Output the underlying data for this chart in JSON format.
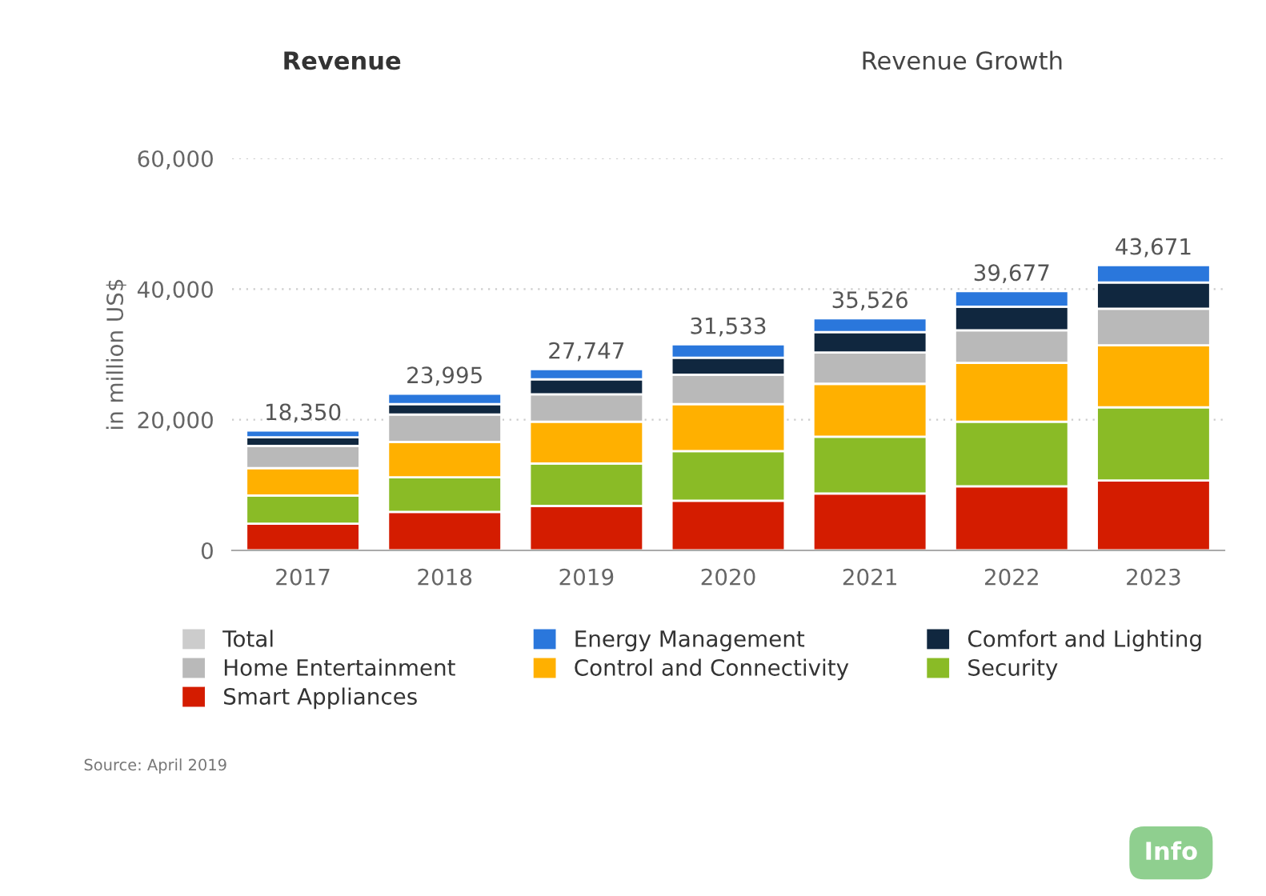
{
  "chart_data": {
    "type": "bar",
    "stacked": true,
    "categories": [
      "2017",
      "2018",
      "2019",
      "2020",
      "2021",
      "2022",
      "2023"
    ],
    "ylabel": "in million US$",
    "ylim": [
      0,
      60000
    ],
    "yticks": [
      0,
      {
        "value": 20000,
        "label": "20,000"
      },
      {
        "value": 40000,
        "label": "40,000"
      },
      {
        "value": 60000,
        "label": "60,000"
      }
    ],
    "grid": "y",
    "legend": "bottom",
    "series": [
      {
        "name": "Smart Appliances",
        "color": "#d41c00",
        "values": [
          4100,
          5900,
          6800,
          7600,
          8700,
          9800,
          10700
        ]
      },
      {
        "name": "Security",
        "color": "#8abb26",
        "values": [
          4300,
          5300,
          6500,
          7600,
          8700,
          9900,
          11200
        ]
      },
      {
        "name": "Control and Connectivity",
        "color": "#ffb000",
        "values": [
          4200,
          5400,
          6400,
          7200,
          8100,
          9000,
          9500
        ]
      },
      {
        "name": "Home Entertainment",
        "color": "#b9b9b9",
        "values": [
          3400,
          4200,
          4200,
          4500,
          4800,
          5000,
          5600
        ]
      },
      {
        "name": "Comfort and Lighting",
        "color": "#10273f",
        "values": [
          1300,
          1600,
          2300,
          2600,
          3100,
          3600,
          4000
        ]
      },
      {
        "name": "Energy Management",
        "color": "#2a77dc",
        "values": [
          1050,
          1595,
          1547,
          2033,
          2126,
          2377,
          2671
        ]
      },
      {
        "name": "Total",
        "color": "#cccccc",
        "values": [
          null,
          null,
          null,
          null,
          null,
          null,
          null
        ]
      }
    ],
    "totals": [
      "18,350",
      "23,995",
      "27,747",
      "31,533",
      "35,526",
      "39,677",
      "43,671"
    ],
    "annotations": [
      "Revenue",
      "Revenue Growth",
      "Source: April 2019",
      "Info"
    ]
  }
}
